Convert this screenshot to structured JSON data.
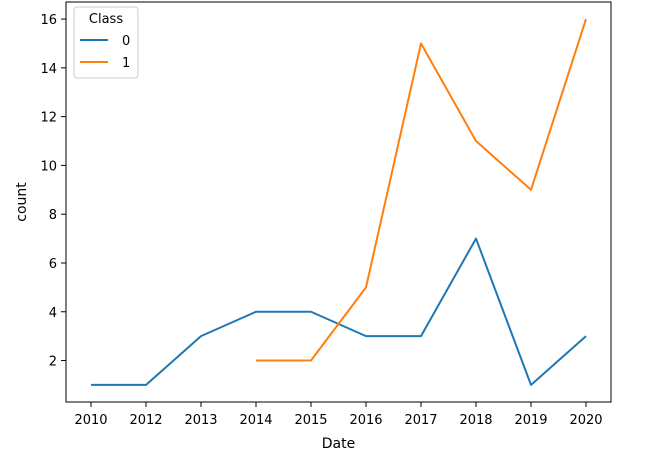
{
  "chart_data": {
    "type": "line",
    "xlabel": "Date",
    "ylabel": "count",
    "categories": [
      "2010",
      "2012",
      "2013",
      "2014",
      "2015",
      "2016",
      "2017",
      "2018",
      "2019",
      "2020"
    ],
    "yticks": [
      2,
      4,
      6,
      8,
      10,
      12,
      14,
      16
    ],
    "ylim": [
      0.3,
      16.7
    ],
    "series": [
      {
        "name": "0",
        "color": "#1f77b4",
        "x": [
          "2010",
          "2012",
          "2013",
          "2014",
          "2015",
          "2016",
          "2017",
          "2018",
          "2019",
          "2020"
        ],
        "values": [
          1,
          1,
          3,
          4,
          4,
          3,
          3,
          7,
          1,
          3
        ]
      },
      {
        "name": "1",
        "color": "#ff7f0e",
        "x": [
          "2014",
          "2015",
          "2016",
          "2017",
          "2018",
          "2019",
          "2020"
        ],
        "values": [
          2,
          2,
          5,
          15,
          11,
          9,
          16
        ]
      }
    ],
    "legend": {
      "title": "Class",
      "placement": "top-left"
    },
    "grid": false
  }
}
